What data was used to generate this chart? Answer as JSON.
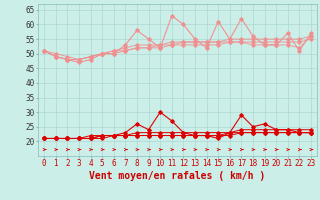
{
  "x": [
    0,
    1,
    2,
    3,
    4,
    5,
    6,
    7,
    8,
    9,
    10,
    11,
    12,
    13,
    14,
    15,
    16,
    17,
    18,
    19,
    20,
    21,
    22,
    23
  ],
  "series_upper": [
    [
      51,
      49,
      48,
      47,
      48,
      50,
      50,
      53,
      58,
      55,
      52,
      63,
      60,
      55,
      52,
      61,
      55,
      62,
      56,
      53,
      53,
      57,
      51,
      57
    ],
    [
      51,
      49,
      48,
      48,
      49,
      50,
      51,
      52,
      53,
      53,
      53,
      54,
      54,
      54,
      54,
      54,
      55,
      55,
      55,
      55,
      55,
      55,
      55,
      56
    ],
    [
      51,
      49,
      48,
      48,
      49,
      50,
      51,
      51,
      52,
      52,
      52,
      53,
      53,
      53,
      53,
      53,
      54,
      54,
      54,
      54,
      54,
      54,
      54,
      55
    ],
    [
      51,
      50,
      49,
      48,
      49,
      50,
      50,
      51,
      52,
      52,
      53,
      53,
      54,
      54,
      54,
      54,
      54,
      54,
      53,
      53,
      53,
      53,
      52,
      56
    ]
  ],
  "series_lower": [
    [
      21,
      21,
      21,
      21,
      21,
      22,
      22,
      23,
      26,
      24,
      30,
      27,
      23,
      22,
      22,
      21,
      23,
      29,
      25,
      26,
      24,
      24,
      23,
      23
    ],
    [
      21,
      21,
      21,
      21,
      21,
      22,
      22,
      22,
      23,
      23,
      23,
      23,
      23,
      23,
      23,
      23,
      23,
      24,
      24,
      24,
      24,
      24,
      24,
      24
    ],
    [
      21,
      21,
      21,
      21,
      21,
      21,
      22,
      22,
      22,
      22,
      22,
      22,
      22,
      22,
      22,
      22,
      22,
      23,
      23,
      23,
      23,
      23,
      23,
      23
    ],
    [
      21,
      21,
      21,
      21,
      22,
      22,
      22,
      22,
      22,
      22,
      22,
      22,
      22,
      22,
      22,
      22,
      23,
      23,
      23,
      23,
      23,
      23,
      23,
      23
    ]
  ],
  "bg_color": "#cceee8",
  "grid_color": "#aad8d0",
  "upper_line_color": "#f09090",
  "lower_line_color": "#dd0000",
  "arrow_color": "#dd0000",
  "xlabel": "Vent moyen/en rafales ( km/h )",
  "ylim": [
    15,
    67
  ],
  "yticks": [
    20,
    25,
    30,
    35,
    40,
    45,
    50,
    55,
    60,
    65
  ],
  "xticks": [
    0,
    1,
    2,
    3,
    4,
    5,
    6,
    7,
    8,
    9,
    10,
    11,
    12,
    13,
    14,
    15,
    16,
    17,
    18,
    19,
    20,
    21,
    22,
    23
  ],
  "xlabel_fontsize": 7,
  "tick_fontsize": 5.5
}
